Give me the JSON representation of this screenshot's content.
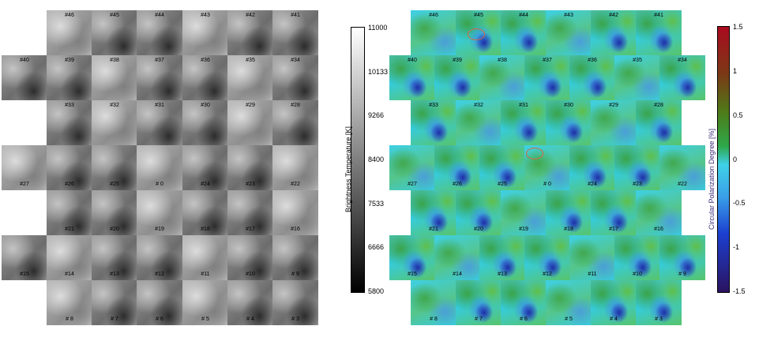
{
  "figure": {
    "brightness_panel": {
      "colorbar_label": "Brightness Temperature [K]",
      "ticks": [
        "11000",
        "10133",
        "9266",
        "8400",
        "7533",
        "6666",
        "5800"
      ],
      "colors": {
        "top": "#ffffff",
        "bottom": "#000000"
      }
    },
    "polarization_panel": {
      "colorbar_label": "Circular Polarization Degree [%]",
      "label_color": "#3a2a7a",
      "ticks": [
        "1.5",
        "1",
        "0.5",
        "0",
        "-0.5",
        "-1",
        "-1.5"
      ],
      "colors": {
        "top": "#aa0a1e",
        "mid_upper": "#2ea84a",
        "mid": "#3fd0e8",
        "lower": "#1c3fd0",
        "bottom": "#2b1360"
      }
    },
    "rows": [
      [
        "#46",
        "#45",
        "#44",
        "#43",
        "#42",
        "#41"
      ],
      [
        "#40",
        "#39",
        "#38",
        "#37",
        "#36",
        "#35",
        "#34"
      ],
      [
        "#33",
        "#32",
        "#31",
        "#30",
        "#29",
        "#28"
      ],
      [
        "#27",
        "#26",
        "#25",
        "# 0",
        "#24",
        "#23",
        "#22"
      ],
      [
        "#21",
        "#20",
        "#19",
        "#18",
        "#17",
        "#16"
      ],
      [
        "#15",
        "#14",
        "#13",
        "#12",
        "#11",
        "#10",
        "# 9"
      ],
      [
        "# 8",
        "# 7",
        "# 6",
        "# 5",
        "# 4",
        "# 3"
      ]
    ]
  }
}
